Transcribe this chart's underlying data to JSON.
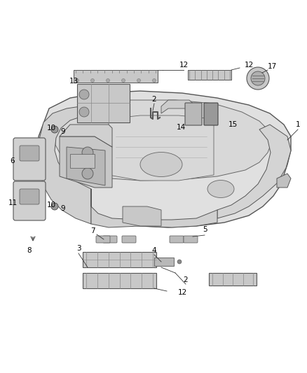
{
  "bg_color": "#ffffff",
  "fig_width": 4.38,
  "fig_height": 5.33,
  "dpi": 100,
  "headliner_color": "#e8e8e8",
  "edge_color": "#555555",
  "line_color": "#777777",
  "label_color": "#000000",
  "label_fontsize": 7.5
}
